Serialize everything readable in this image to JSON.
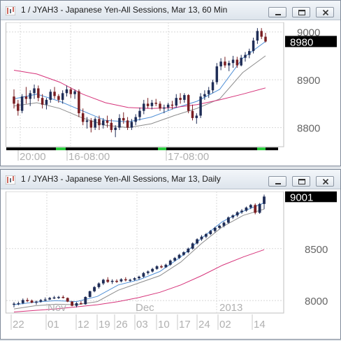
{
  "windows": [
    {
      "title": "1 / JYAH3 - Japanese Yen-All Sessions, Mar 13, 60 Min",
      "price_label": "8980",
      "buttons": [
        "minimize",
        "maximize",
        "close"
      ]
    },
    {
      "title": "1 / JYAH3 - Japanese Yen-All Sessions, Mar 13, Daily",
      "price_label": "9001",
      "buttons": [
        "minimize",
        "maximize",
        "close"
      ]
    }
  ],
  "chart_data": [
    {
      "type": "candlestick",
      "title": "1 / JYAH3 - Japanese Yen-All Sessions, Mar 13, 60 Min",
      "ylim": [
        8760,
        9020
      ],
      "yticks": [
        8800,
        8900,
        9000
      ],
      "ytick_labels": [
        "8800",
        "8900",
        "9000"
      ],
      "xtick_labels": [
        "20:00",
        "16-08:00",
        "17-08:00"
      ],
      "last_price": 8980,
      "grid": true,
      "series": [
        {
          "name": "",
          "kind": "candles",
          "ohlc": [
            [
              8865,
              8880,
              8840,
              8850
            ],
            [
              8850,
              8858,
              8825,
              8835
            ],
            [
              8835,
              8870,
              8830,
              8865
            ],
            [
              8865,
              8885,
              8850,
              8860
            ],
            [
              8860,
              8878,
              8845,
              8872
            ],
            [
              8872,
              8890,
              8860,
              8882
            ],
            [
              8882,
              8888,
              8855,
              8862
            ],
            [
              8862,
              8870,
              8840,
              8848
            ],
            [
              8848,
              8862,
              8838,
              8858
            ],
            [
              8858,
              8880,
              8852,
              8875
            ],
            [
              8875,
              8885,
              8860,
              8866
            ],
            [
              8866,
              8870,
              8852,
              8858
            ],
            [
              8858,
              8878,
              8850,
              8872
            ],
            [
              8872,
              8888,
              8865,
              8880
            ],
            [
              8880,
              8884,
              8862,
              8870
            ],
            [
              8870,
              8880,
              8860,
              8876
            ],
            [
              8876,
              8880,
              8822,
              8830
            ],
            [
              8830,
              8840,
              8805,
              8812
            ],
            [
              8812,
              8822,
              8798,
              8815
            ],
            [
              8815,
              8820,
              8790,
              8800
            ],
            [
              8800,
              8822,
              8795,
              8818
            ],
            [
              8818,
              8825,
              8795,
              8805
            ],
            [
              8805,
              8820,
              8798,
              8815
            ],
            [
              8815,
              8825,
              8800,
              8810
            ],
            [
              8810,
              8818,
              8790,
              8795
            ],
            [
              8795,
              8805,
              8780,
              8800
            ],
            [
              8800,
              8828,
              8795,
              8820
            ],
            [
              8820,
              8832,
              8808,
              8815
            ],
            [
              8815,
              8822,
              8795,
              8800
            ],
            [
              8800,
              8818,
              8795,
              8812
            ],
            [
              8812,
              8828,
              8805,
              8822
            ],
            [
              8822,
              8842,
              8815,
              8835
            ],
            [
              8835,
              8858,
              8828,
              8850
            ],
            [
              8850,
              8862,
              8840,
              8845
            ],
            [
              8845,
              8858,
              8838,
              8852
            ],
            [
              8852,
              8860,
              8845,
              8850
            ],
            [
              8850,
              8855,
              8835,
              8840
            ],
            [
              8840,
              8848,
              8830,
              8842
            ],
            [
              8842,
              8852,
              8836,
              8848
            ],
            [
              8848,
              8856,
              8838,
              8846
            ],
            [
              8846,
              8870,
              8842,
              8862
            ],
            [
              8862,
              8872,
              8850,
              8858
            ],
            [
              8858,
              8872,
              8852,
              8868
            ],
            [
              8868,
              8870,
              8830,
              8835
            ],
            [
              8835,
              8848,
              8815,
              8820
            ],
            [
              8820,
              8830,
              8808,
              8825
            ],
            [
              8825,
              8872,
              8820,
              8865
            ],
            [
              8865,
              8878,
              8858,
              8870
            ],
            [
              8870,
              8885,
              8862,
              8878
            ],
            [
              8878,
              8900,
              8872,
              8895
            ],
            [
              8895,
              8935,
              8890,
              8928
            ],
            [
              8928,
              8945,
              8920,
              8938
            ],
            [
              8938,
              8948,
              8925,
              8930
            ],
            [
              8930,
              8940,
              8918,
              8935
            ],
            [
              8935,
              8950,
              8925,
              8942
            ],
            [
              8942,
              8948,
              8925,
              8930
            ],
            [
              8930,
              8952,
              8928,
              8946
            ],
            [
              8946,
              8958,
              8938,
              8952
            ],
            [
              8952,
              8965,
              8945,
              8960
            ],
            [
              8960,
              8988,
              8955,
              8982
            ],
            [
              8982,
              9008,
              8975,
              9002
            ],
            [
              9002,
              9008,
              8985,
              8990
            ],
            [
              8990,
              8998,
              8978,
              8980
            ]
          ]
        },
        {
          "name": "",
          "kind": "line",
          "color": "#4f8fd6",
          "values": [
            8860,
            8870,
            8855,
            8835,
            8815,
            8812,
            8822,
            8840,
            8855,
            8880,
            8945,
            8980
          ]
        },
        {
          "name": "",
          "kind": "line",
          "color": "#8c8c8c",
          "values": [
            8845,
            8852,
            8840,
            8820,
            8805,
            8800,
            8808,
            8825,
            8840,
            8860,
            8915,
            8950
          ]
        },
        {
          "name": "",
          "kind": "line",
          "color": "#d6337a",
          "values": [
            8920,
            8912,
            8895,
            8870,
            8852,
            8842,
            8840,
            8842,
            8848,
            8858,
            8870,
            8883
          ]
        }
      ]
    },
    {
      "type": "candlestick",
      "title": "1 / JYAH3 - Japanese Yen-All Sessions, Mar 13, Daily",
      "ylim": [
        7880,
        9050
      ],
      "yticks": [
        8000,
        8500
      ],
      "ytick_labels": [
        "8000",
        "8500"
      ],
      "xtick_labels": [
        "22",
        "01",
        "12",
        "19",
        "26",
        "03",
        "10",
        "17",
        "24",
        "02",
        "14"
      ],
      "month_labels": [
        "Nov",
        "Dec",
        "2013"
      ],
      "last_price": 9001,
      "grid": true,
      "series": [
        {
          "name": "",
          "kind": "candles",
          "ohlc": [
            [
              7965,
              7985,
              7935,
              7970
            ],
            [
              7970,
              7990,
              7955,
              7975
            ],
            [
              7975,
              8020,
              7965,
              8005
            ],
            [
              8005,
              8025,
              7985,
              8000
            ],
            [
              8000,
              8010,
              7975,
              7980
            ],
            [
              7980,
              8000,
              7960,
              7990
            ],
            [
              7990,
              8015,
              7980,
              8005
            ],
            [
              8005,
              8030,
              7995,
              8010
            ],
            [
              8010,
              8035,
              8005,
              8025
            ],
            [
              8025,
              8045,
              8015,
              8030
            ],
            [
              8030,
              8045,
              8015,
              8035
            ],
            [
              8035,
              8050,
              8020,
              8025
            ],
            [
              8025,
              8030,
              7985,
              7990
            ],
            [
              7990,
              7995,
              7945,
              7950
            ],
            [
              7950,
              7985,
              7935,
              7975
            ],
            [
              7975,
              7995,
              7960,
              7965
            ],
            [
              7965,
              8040,
              7960,
              8035
            ],
            [
              8035,
              8095,
              8030,
              8090
            ],
            [
              8090,
              8140,
              8080,
              8130
            ],
            [
              8130,
              8175,
              8115,
              8165
            ],
            [
              8165,
              8210,
              8150,
              8200
            ],
            [
              8200,
              8225,
              8170,
              8180
            ],
            [
              8180,
              8205,
              8160,
              8190
            ],
            [
              8190,
              8205,
              8170,
              8185
            ],
            [
              8185,
              8215,
              8175,
              8205
            ],
            [
              8205,
              8225,
              8185,
              8195
            ],
            [
              8195,
              8210,
              8180,
              8200
            ],
            [
              8200,
              8225,
              8190,
              8215
            ],
            [
              8215,
              8240,
              8200,
              8230
            ],
            [
              8230,
              8275,
              8220,
              8265
            ],
            [
              8265,
              8290,
              8250,
              8280
            ],
            [
              8280,
              8315,
              8270,
              8305
            ],
            [
              8305,
              8340,
              8295,
              8330
            ],
            [
              8330,
              8345,
              8310,
              8320
            ],
            [
              8320,
              8355,
              8315,
              8345
            ],
            [
              8345,
              8395,
              8335,
              8385
            ],
            [
              8385,
              8420,
              8375,
              8410
            ],
            [
              8410,
              8450,
              8400,
              8440
            ],
            [
              8440,
              8475,
              8430,
              8465
            ],
            [
              8465,
              8510,
              8455,
              8500
            ],
            [
              8500,
              8560,
              8490,
              8550
            ],
            [
              8550,
              8600,
              8540,
              8590
            ],
            [
              8590,
              8630,
              8575,
              8615
            ],
            [
              8615,
              8650,
              8600,
              8640
            ],
            [
              8640,
              8680,
              8630,
              8670
            ],
            [
              8670,
              8710,
              8655,
              8700
            ],
            [
              8700,
              8730,
              8690,
              8720
            ],
            [
              8720,
              8760,
              8705,
              8750
            ],
            [
              8750,
              8810,
              8740,
              8800
            ],
            [
              8800,
              8830,
              8785,
              8820
            ],
            [
              8820,
              8860,
              8805,
              8850
            ],
            [
              8850,
              8880,
              8835,
              8865
            ],
            [
              8865,
              8905,
              8855,
              8895
            ],
            [
              8895,
              8930,
              8880,
              8920
            ],
            [
              8920,
              8935,
              8830,
              8845
            ],
            [
              8845,
              8940,
              8835,
              8930
            ],
            [
              8930,
              9020,
              8880,
              9001
            ]
          ]
        },
        {
          "name": "",
          "kind": "line",
          "color": "#4f8fd6",
          "values": [
            7960,
            7985,
            8000,
            7990,
            8040,
            8150,
            8200,
            8280,
            8420,
            8600,
            8760,
            8860,
            8940
          ]
        },
        {
          "name": "",
          "kind": "line",
          "color": "#8c8c8c",
          "values": [
            7920,
            7950,
            7965,
            7960,
            7990,
            8100,
            8170,
            8240,
            8370,
            8550,
            8710,
            8820,
            8880
          ]
        },
        {
          "name": "",
          "kind": "line",
          "color": "#d6337a",
          "values": [
            7890,
            7905,
            7920,
            7940,
            7960,
            7990,
            8030,
            8080,
            8150,
            8240,
            8340,
            8420,
            8490
          ]
        }
      ]
    }
  ]
}
